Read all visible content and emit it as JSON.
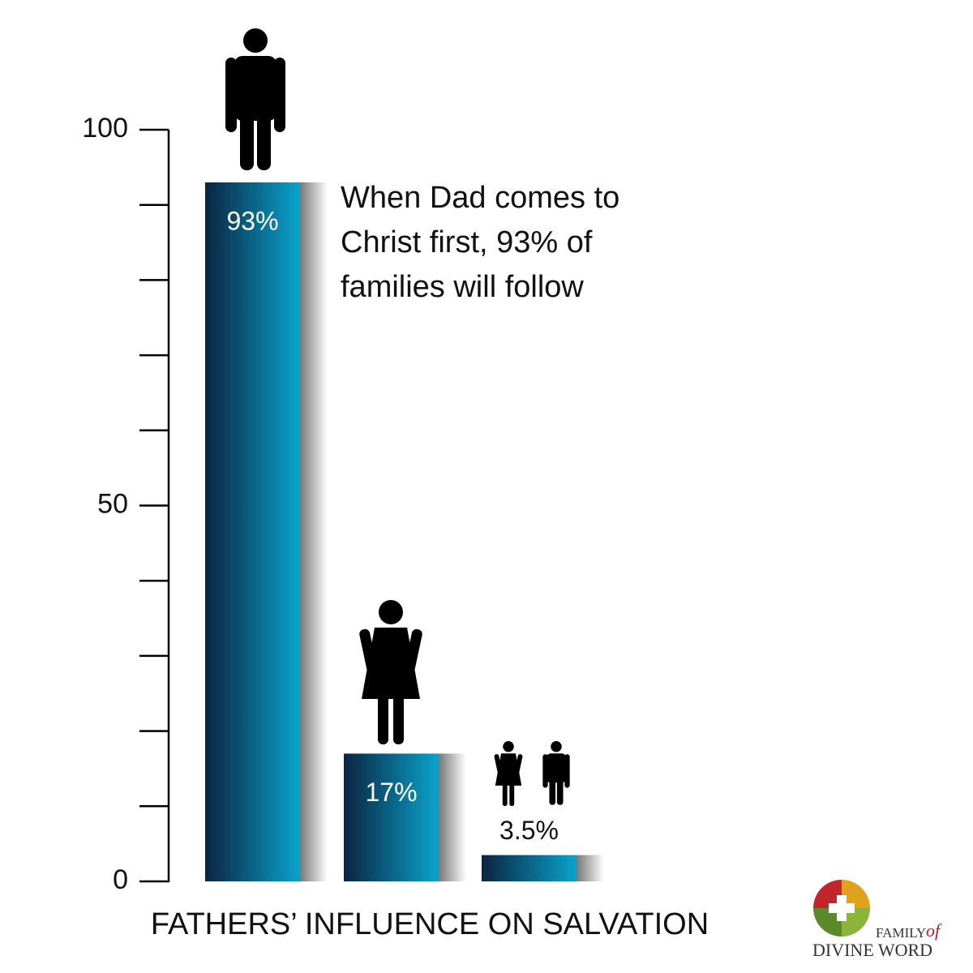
{
  "chart_data": {
    "type": "bar",
    "title": "FATHERS’ INFLUENCE ON SALVATION",
    "annotation": [
      "When Dad comes to",
      "Christ first, 93% of",
      "families will follow"
    ],
    "categories": [
      null,
      null,
      null
    ],
    "values": [
      93,
      17,
      3.5
    ],
    "value_labels": [
      "93%",
      "17%",
      "3.5%"
    ],
    "color_dark": "#0b2440",
    "color_light": "#0aa3cc",
    "ylim": [
      0,
      100
    ],
    "yticks": [
      0,
      50,
      100
    ],
    "minor_yticks": [
      10,
      20,
      30,
      40,
      60,
      70,
      80,
      90
    ]
  },
  "logo": {
    "top": "FAMILY",
    "of": "of",
    "bottom": "DIVINE WORD"
  }
}
